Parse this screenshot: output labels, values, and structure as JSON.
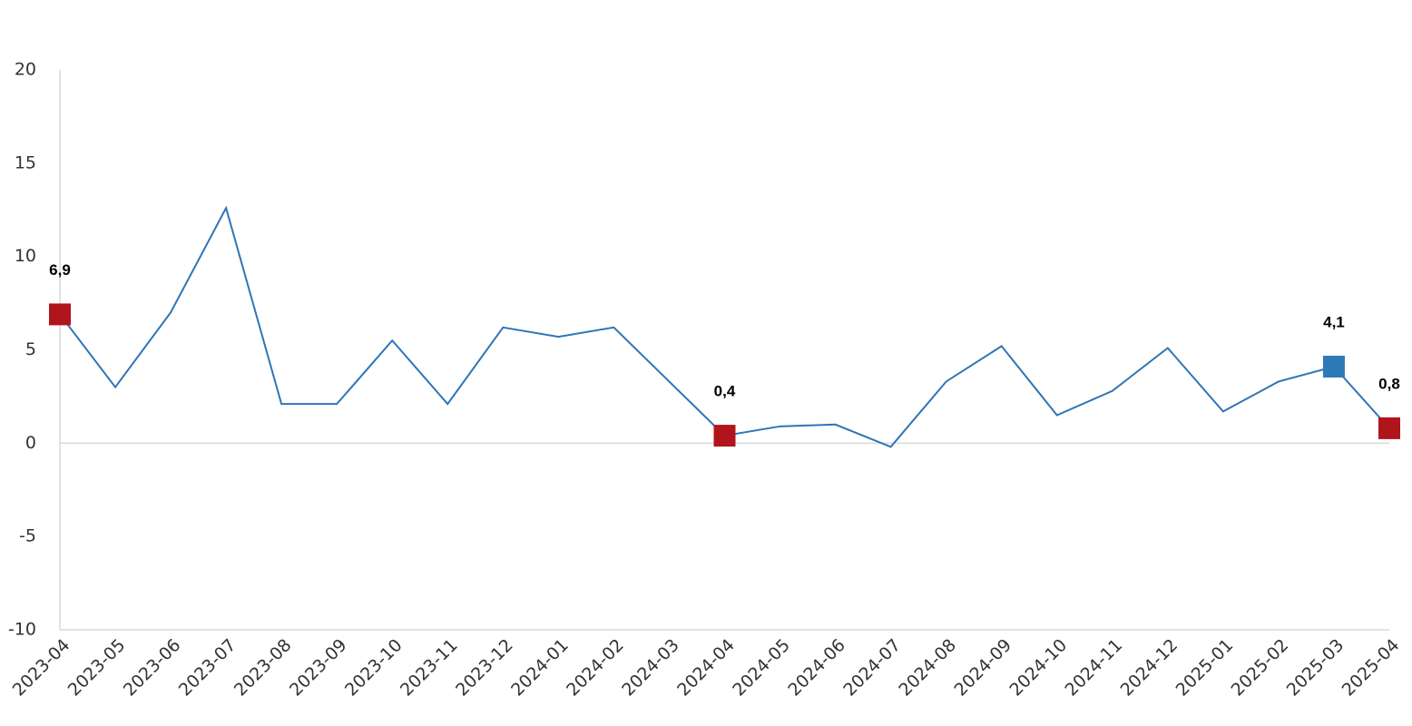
{
  "chart_data": {
    "type": "line",
    "categories": [
      "2023-04",
      "2023-05",
      "2023-06",
      "2023-07",
      "2023-08",
      "2023-09",
      "2023-10",
      "2023-11",
      "2023-12",
      "2024-01",
      "2024-02",
      "2024-03",
      "2024-04",
      "2024-05",
      "2024-06",
      "2024-07",
      "2024-08",
      "2024-09",
      "2024-10",
      "2024-11",
      "2024-12",
      "2025-01",
      "2025-02",
      "2025-03",
      "2025-04"
    ],
    "series": [
      {
        "color": "#2e75b6",
        "values": [
          6.9,
          3.0,
          7.0,
          12.6,
          2.1,
          2.1,
          5.5,
          2.1,
          6.2,
          5.7,
          6.2,
          3.3,
          0.4,
          0.9,
          1.0,
          -0.2,
          3.3,
          5.2,
          1.5,
          2.8,
          5.1,
          1.7,
          3.3,
          4.1,
          0.8
        ],
        "value_labels": [
          "6,9",
          null,
          null,
          null,
          null,
          null,
          null,
          null,
          null,
          null,
          null,
          null,
          "0,4",
          null,
          null,
          null,
          null,
          null,
          null,
          null,
          null,
          null,
          null,
          "4,1",
          "0,8"
        ],
        "marker_colors": [
          "#b0141c",
          null,
          null,
          null,
          null,
          null,
          null,
          null,
          null,
          null,
          null,
          null,
          "#b0141c",
          null,
          null,
          null,
          null,
          null,
          null,
          null,
          null,
          null,
          null,
          "#2e7ab8",
          "#b0141c"
        ]
      }
    ],
    "ylim": [
      -10,
      20
    ],
    "yticks": [
      -10,
      -5,
      0,
      5,
      10,
      15,
      20
    ],
    "zero_line": true
  }
}
